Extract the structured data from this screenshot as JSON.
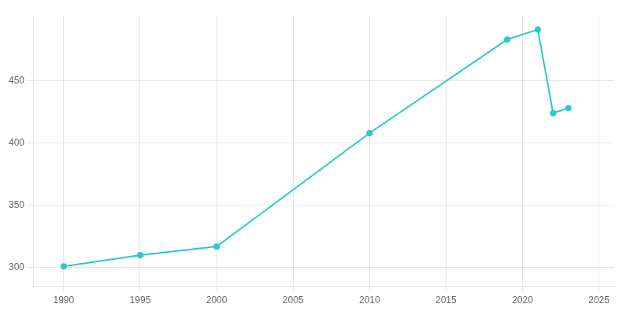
{
  "chart_data": {
    "type": "line",
    "x": [
      1990,
      1995,
      2000,
      2010,
      2019,
      2021,
      2022,
      2023
    ],
    "values": [
      301,
      310,
      317,
      408,
      483,
      491,
      424,
      428
    ],
    "color": "#2ec8c8",
    "marker": "o",
    "xlim": [
      1988,
      2026
    ],
    "xticks": [
      1990,
      1995,
      2000,
      2005,
      2010,
      2015,
      2020,
      2025
    ],
    "ylim": [
      285,
      502
    ],
    "yticks": [
      300,
      350,
      400,
      450
    ],
    "grid": true
  }
}
